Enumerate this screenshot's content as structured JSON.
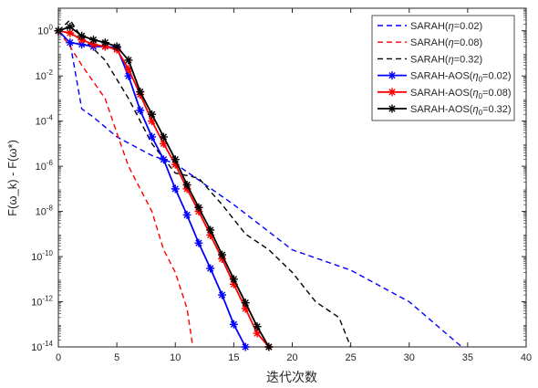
{
  "chart_data": {
    "type": "line",
    "xlabel": "迭代次数",
    "ylabel": "F(ω_k) - F(ω*)",
    "y_scale": "log",
    "xlim": [
      0,
      40
    ],
    "ylim": [
      1e-14,
      10
    ],
    "x_ticks": [
      "0",
      "5",
      "10",
      "15",
      "20",
      "25",
      "30",
      "35",
      "40"
    ],
    "y_ticks": [
      {
        "value": 1,
        "base": "10",
        "exp": "0"
      },
      {
        "value": 0.01,
        "base": "10",
        "exp": "-2"
      },
      {
        "value": 0.0001,
        "base": "10",
        "exp": "-4"
      },
      {
        "value": 1e-06,
        "base": "10",
        "exp": "-6"
      },
      {
        "value": 1e-08,
        "base": "10",
        "exp": "-8"
      },
      {
        "value": 1e-10,
        "base": "10",
        "exp": "-10"
      },
      {
        "value": 1e-12,
        "base": "10",
        "exp": "-12"
      },
      {
        "value": 1e-14,
        "base": "10",
        "exp": "-14"
      }
    ],
    "grid": false,
    "legend_position": "top-right",
    "series": [
      {
        "name": "SARAH(η=0.02)",
        "color": "#0000ff",
        "dashed": true,
        "marker": "none",
        "points": [
          [
            0,
            1
          ],
          [
            1,
            0.3
          ],
          [
            2,
            0.00035
          ],
          [
            3,
            0.00015
          ],
          [
            5,
            2e-05
          ],
          [
            8,
            3e-06
          ],
          [
            10,
            1.3e-06
          ],
          [
            15,
            2e-08
          ],
          [
            20,
            2e-10
          ],
          [
            25,
            2.5e-11
          ],
          [
            30,
            1e-12
          ],
          [
            34.5,
            1e-14
          ]
        ]
      },
      {
        "name": "SARAH(η=0.08)",
        "color": "#ff0000",
        "dashed": true,
        "marker": "none",
        "points": [
          [
            0,
            1
          ],
          [
            1,
            0.2
          ],
          [
            2,
            0.03
          ],
          [
            4,
            0.001
          ],
          [
            5,
            3e-05
          ],
          [
            6,
            1e-06
          ],
          [
            7,
            1e-07
          ],
          [
            8,
            1e-08
          ],
          [
            9,
            2e-10
          ],
          [
            10,
            2e-11
          ],
          [
            11,
            5e-13
          ],
          [
            11.5,
            1e-14
          ]
        ]
      },
      {
        "name": "SARAH(η=0.32)",
        "color": "#000000",
        "dashed": true,
        "marker": "none",
        "points": [
          [
            0,
            1
          ],
          [
            1,
            3
          ],
          [
            2,
            0.5
          ],
          [
            4,
            0.05
          ],
          [
            6,
            0.001
          ],
          [
            8,
            1e-05
          ],
          [
            10,
            5e-07
          ],
          [
            12,
            3e-07
          ],
          [
            14,
            2e-08
          ],
          [
            16,
            1e-09
          ],
          [
            18,
            2e-10
          ],
          [
            20,
            2e-11
          ],
          [
            22,
            1e-12
          ],
          [
            24,
            2e-13
          ],
          [
            25,
            1e-14
          ]
        ]
      },
      {
        "name": "SARAH-AOS(η0=0.02)",
        "color": "#0000ff",
        "dashed": false,
        "marker": "*",
        "points": [
          [
            0,
            1
          ],
          [
            1,
            0.3
          ],
          [
            2,
            0.25
          ],
          [
            3,
            0.2
          ],
          [
            4,
            0.2
          ],
          [
            5,
            0.18
          ],
          [
            6,
            0.01
          ],
          [
            7,
            0.0003
          ],
          [
            8,
            2e-05
          ],
          [
            9,
            2e-06
          ],
          [
            10,
            1e-07
          ],
          [
            11,
            7e-09
          ],
          [
            12,
            4e-10
          ],
          [
            13,
            3e-11
          ],
          [
            14,
            2e-12
          ],
          [
            15,
            1e-13
          ],
          [
            16,
            1e-14
          ]
        ]
      },
      {
        "name": "SARAH-AOS(η0=0.08)",
        "color": "#ff0000",
        "dashed": false,
        "marker": "*",
        "points": [
          [
            0,
            1
          ],
          [
            1,
            0.8
          ],
          [
            2,
            0.4
          ],
          [
            3,
            0.25
          ],
          [
            4,
            0.2
          ],
          [
            5,
            0.15
          ],
          [
            6,
            0.02
          ],
          [
            7,
            0.0015
          ],
          [
            8,
            0.0001
          ],
          [
            9,
            1e-05
          ],
          [
            10,
            1.2e-06
          ],
          [
            11,
            1e-07
          ],
          [
            12,
            1e-08
          ],
          [
            13,
            9e-10
          ],
          [
            14,
            8e-11
          ],
          [
            15,
            6e-12
          ],
          [
            16,
            5e-13
          ],
          [
            17,
            4e-14
          ],
          [
            18,
            1e-14
          ]
        ]
      },
      {
        "name": "SARAH-AOS(η0=0.32)",
        "color": "#000000",
        "dashed": false,
        "marker": "*",
        "points": [
          [
            0,
            1
          ],
          [
            1,
            1.5
          ],
          [
            2,
            0.6
          ],
          [
            3,
            0.4
          ],
          [
            4,
            0.3
          ],
          [
            5,
            0.2
          ],
          [
            6,
            0.05
          ],
          [
            7,
            0.002
          ],
          [
            8,
            0.0002
          ],
          [
            9,
            2e-05
          ],
          [
            10,
            2e-06
          ],
          [
            11,
            1.5e-07
          ],
          [
            12,
            1.5e-08
          ],
          [
            13,
            1.5e-09
          ],
          [
            14,
            1.2e-10
          ],
          [
            15,
            1e-11
          ],
          [
            16,
            9e-13
          ],
          [
            17,
            8e-14
          ],
          [
            18,
            1e-14
          ]
        ]
      }
    ]
  }
}
